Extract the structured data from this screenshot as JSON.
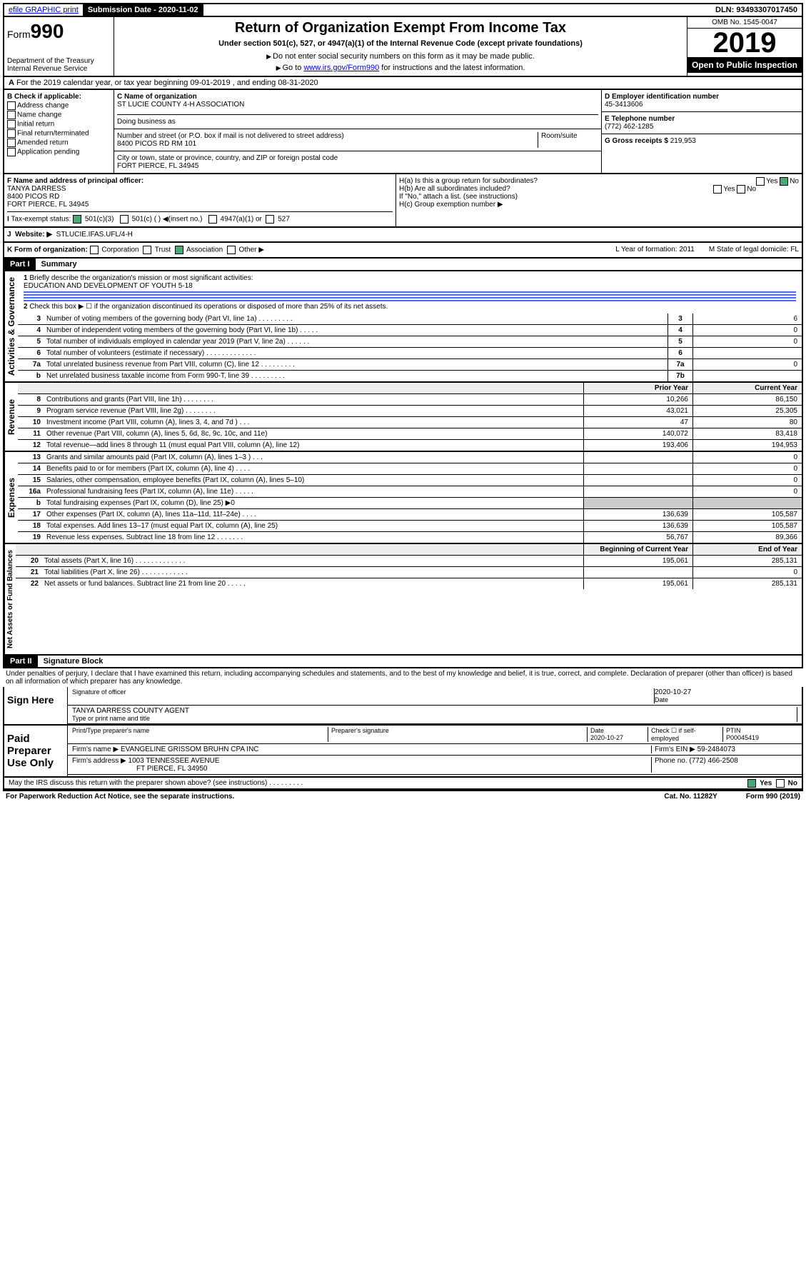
{
  "topbar": {
    "efile": "efile GRAPHIC print",
    "submission_label": "Submission Date - 2020-11-02",
    "dln": "DLN: 93493307017450"
  },
  "header": {
    "form_prefix": "Form",
    "form_number": "990",
    "dept": "Department of the Treasury\nInternal Revenue Service",
    "title": "Return of Organization Exempt From Income Tax",
    "subtitle": "Under section 501(c), 527, or 4947(a)(1) of the Internal Revenue Code (except private foundations)",
    "note1": "Do not enter social security numbers on this form as it may be made public.",
    "note2_pre": "Go to ",
    "note2_link": "www.irs.gov/Form990",
    "note2_post": " for instructions and the latest information.",
    "omb": "OMB No. 1545-0047",
    "year": "2019",
    "open": "Open to Public Inspection"
  },
  "section_a": "For the 2019 calendar year, or tax year beginning 09-01-2019   , and ending 08-31-2020",
  "box_b": {
    "label": "B Check if applicable:",
    "items": [
      "Address change",
      "Name change",
      "Initial return",
      "Final return/terminated",
      "Amended return",
      "Application pending"
    ]
  },
  "box_c": {
    "name_label": "C Name of organization",
    "name": "ST LUCIE COUNTY 4-H ASSOCIATION",
    "dba_label": "Doing business as",
    "addr_label": "Number and street (or P.O. box if mail is not delivered to street address)",
    "room_label": "Room/suite",
    "addr": "8400 PICOS RD RM 101",
    "city_label": "City or town, state or province, country, and ZIP or foreign postal code",
    "city": "FORT PIERCE, FL  34945"
  },
  "box_d": {
    "label": "D Employer identification number",
    "value": "45-3413606"
  },
  "box_e": {
    "label": "E Telephone number",
    "value": "(772) 462-1285"
  },
  "box_g": {
    "label": "G Gross receipts $",
    "value": "219,953"
  },
  "box_f": {
    "label": "F Name and address of principal officer:",
    "name": "TANYA DARRESS",
    "addr1": "8400 PICOS RD",
    "addr2": "FORT PIERCE, FL  34945"
  },
  "box_h": {
    "a": "H(a)  Is this a group return for subordinates?",
    "b": "H(b)  Are all subordinates included?",
    "b_note": "If \"No,\" attach a list. (see instructions)",
    "c": "H(c)  Group exemption number ▶"
  },
  "box_i": {
    "label": "Tax-exempt status:",
    "opt1": "501(c)(3)",
    "opt2": "501(c) (  ) ◀(insert no.)",
    "opt3": "4947(a)(1) or",
    "opt4": "527"
  },
  "box_j": {
    "label": "Website: ▶",
    "value": "STLUCIE.IFAS.UFL/4-H"
  },
  "box_k": {
    "label": "K Form of organization:",
    "opts": [
      "Corporation",
      "Trust",
      "Association",
      "Other ▶"
    ],
    "l": "L Year of formation: 2011",
    "m": "M State of legal domicile: FL"
  },
  "part1": {
    "header": "Part I",
    "title": "Summary",
    "line1_label": "Briefly describe the organization's mission or most significant activities:",
    "line1_value": "EDUCATION AND DEVELOPMENT OF YOUTH 5-18",
    "line2": "Check this box ▶ ☐  if the organization discontinued its operations or disposed of more than 25% of its net assets."
  },
  "governance_label": "Activities & Governance",
  "revenue_label": "Revenue",
  "expenses_label": "Expenses",
  "netassets_label": "Net Assets or Fund Balances",
  "gov_lines": [
    {
      "n": "3",
      "d": "Number of voting members of the governing body (Part VI, line 1a)  .    .    .    .    .    .    .    .    .",
      "b": "3",
      "v": "6"
    },
    {
      "n": "4",
      "d": "Number of independent voting members of the governing body (Part VI, line 1b)  .    .    .    .    .",
      "b": "4",
      "v": "0"
    },
    {
      "n": "5",
      "d": "Total number of individuals employed in calendar year 2019 (Part V, line 2a)  .    .    .    .    .    .",
      "b": "5",
      "v": "0"
    },
    {
      "n": "6",
      "d": "Total number of volunteers (estimate if necessary)  .    .    .    .    .    .    .    .    .    .    .    .    .",
      "b": "6",
      "v": ""
    },
    {
      "n": "7a",
      "d": "Total unrelated business revenue from Part VIII, column (C), line 12  .    .    .    .    .    .    .    .    .",
      "b": "7a",
      "v": "0"
    },
    {
      "n": "b",
      "d": "Net unrelated business taxable income from Form 990-T, line 39  .    .    .    .    .    .    .    .    .",
      "b": "7b",
      "v": ""
    }
  ],
  "col_headers": {
    "prior": "Prior Year",
    "current": "Current Year",
    "beg": "Beginning of Current Year",
    "end": "End of Year"
  },
  "rev_lines": [
    {
      "n": "8",
      "d": "Contributions and grants (Part VIII, line 1h)  .    .    .    .    .    .    .    .",
      "p": "10,266",
      "c": "86,150"
    },
    {
      "n": "9",
      "d": "Program service revenue (Part VIII, line 2g)  .    .    .    .    .    .    .    .",
      "p": "43,021",
      "c": "25,305"
    },
    {
      "n": "10",
      "d": "Investment income (Part VIII, column (A), lines 3, 4, and 7d )  .    .    .",
      "p": "47",
      "c": "80"
    },
    {
      "n": "11",
      "d": "Other revenue (Part VIII, column (A), lines 5, 6d, 8c, 9c, 10c, and 11e)",
      "p": "140,072",
      "c": "83,418"
    },
    {
      "n": "12",
      "d": "Total revenue—add lines 8 through 11 (must equal Part VIII, column (A), line 12)",
      "p": "193,406",
      "c": "194,953"
    }
  ],
  "exp_lines": [
    {
      "n": "13",
      "d": "Grants and similar amounts paid (Part IX, column (A), lines 1–3 )  .    .    .",
      "p": "",
      "c": "0"
    },
    {
      "n": "14",
      "d": "Benefits paid to or for members (Part IX, column (A), line 4)  .    .    .    .",
      "p": "",
      "c": "0"
    },
    {
      "n": "15",
      "d": "Salaries, other compensation, employee benefits (Part IX, column (A), lines 5–10)",
      "p": "",
      "c": "0"
    },
    {
      "n": "16a",
      "d": "Professional fundraising fees (Part IX, column (A), line 11e)  .    .    .    .    .",
      "p": "",
      "c": "0"
    },
    {
      "n": "b",
      "d": "Total fundraising expenses (Part IX, column (D), line 25) ▶0",
      "p": null,
      "c": null
    },
    {
      "n": "17",
      "d": "Other expenses (Part IX, column (A), lines 11a–11d, 11f–24e)  .    .    .    .",
      "p": "136,639",
      "c": "105,587"
    },
    {
      "n": "18",
      "d": "Total expenses. Add lines 13–17 (must equal Part IX, column (A), line 25)",
      "p": "136,639",
      "c": "105,587"
    },
    {
      "n": "19",
      "d": "Revenue less expenses. Subtract line 18 from line 12  .    .    .    .    .    .    .",
      "p": "56,767",
      "c": "89,366"
    }
  ],
  "net_lines": [
    {
      "n": "20",
      "d": "Total assets (Part X, line 16)  .    .    .    .    .    .    .    .    .    .    .    .    .",
      "p": "195,061",
      "c": "285,131"
    },
    {
      "n": "21",
      "d": "Total liabilities (Part X, line 26)  .    .    .    .    .    .    .    .    .    .    .    .",
      "p": "",
      "c": "0"
    },
    {
      "n": "22",
      "d": "Net assets or fund balances. Subtract line 21 from line 20  .    .    .    .    .",
      "p": "195,061",
      "c": "285,131"
    }
  ],
  "part2": {
    "header": "Part II",
    "title": "Signature Block"
  },
  "penalties": "Under penalties of perjury, I declare that I have examined this return, including accompanying schedules and statements, and to the best of my knowledge and belief, it is true, correct, and complete. Declaration of preparer (other than officer) is based on all information of which preparer has any knowledge.",
  "sign": {
    "label": "Sign Here",
    "sig_officer": "Signature of officer",
    "date": "2020-10-27",
    "date_label": "Date",
    "name": "TANYA DARRESS  COUNTY AGENT",
    "name_label": "Type or print name and title"
  },
  "preparer": {
    "label": "Paid Preparer Use Only",
    "h1": "Print/Type preparer's name",
    "h2": "Preparer's signature",
    "h3": "Date",
    "h3v": "2020-10-27",
    "h4": "Check ☐ if self-employed",
    "h5": "PTIN",
    "h5v": "P00045419",
    "firm_label": "Firm's name    ▶",
    "firm": "EVANGELINE GRISSOM BRUHN CPA INC",
    "ein_label": "Firm's EIN ▶",
    "ein": "59-2484073",
    "addr_label": "Firm's address ▶",
    "addr1": "1003 TENNESSEE AVENUE",
    "addr2": "FT PIERCE, FL  34950",
    "phone_label": "Phone no.",
    "phone": "(772) 466-2508"
  },
  "discuss": "May the IRS discuss this return with the preparer shown above? (see instructions)  .    .    .    .    .    .    .    .    .",
  "footer": {
    "left": "For Paperwork Reduction Act Notice, see the separate instructions.",
    "mid": "Cat. No. 11282Y",
    "right": "Form 990 (2019)"
  }
}
